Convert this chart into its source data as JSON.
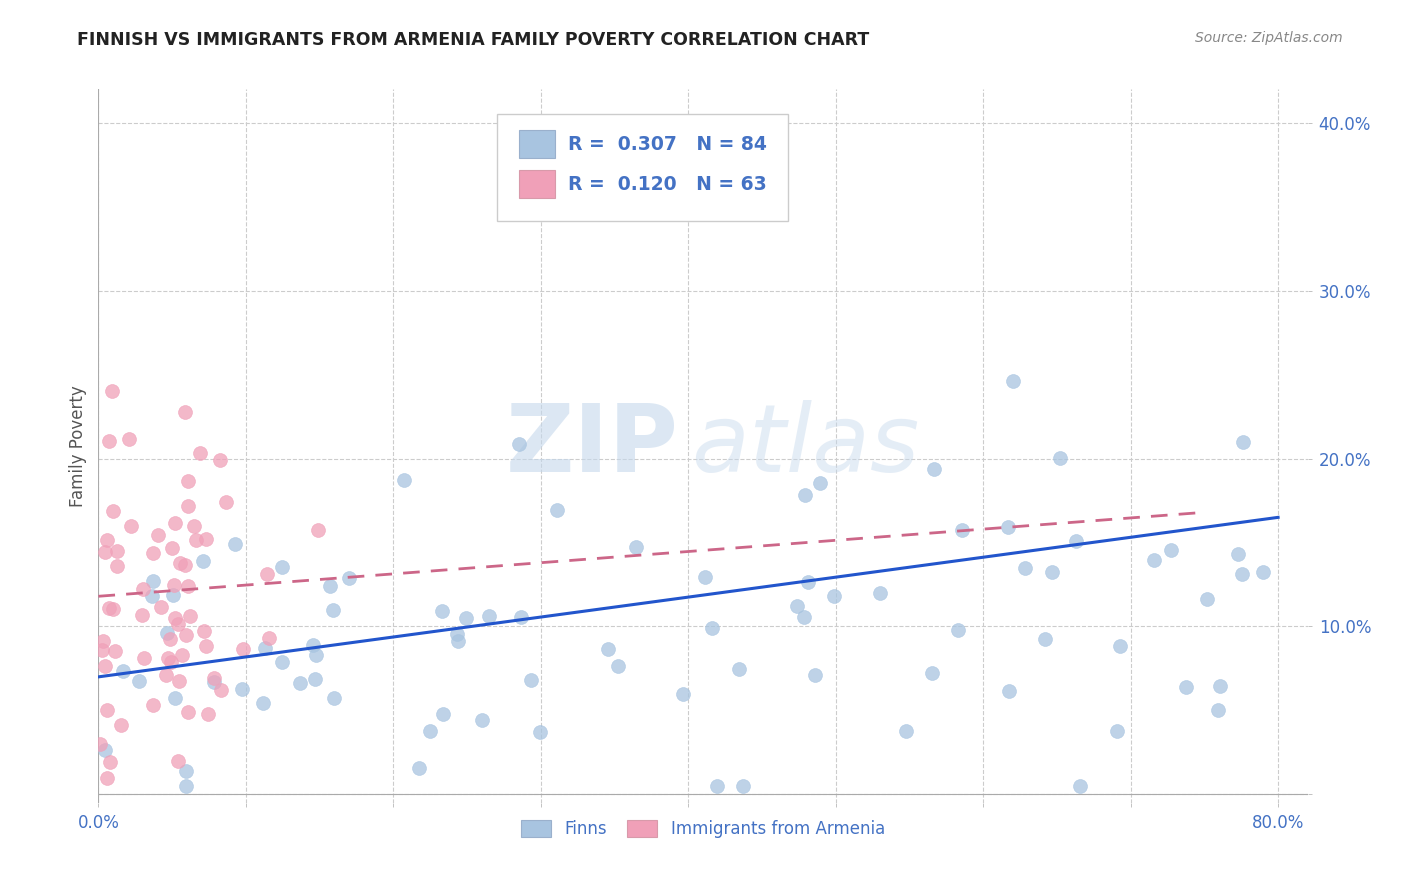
{
  "title": "FINNISH VS IMMIGRANTS FROM ARMENIA FAMILY POVERTY CORRELATION CHART",
  "source": "Source: ZipAtlas.com",
  "ylabel": "Family Poverty",
  "legend_label_1": "Finns",
  "legend_label_2": "Immigrants from Armenia",
  "R1": 0.307,
  "N1": 84,
  "R2": 0.12,
  "N2": 63,
  "color_finns": "#a8c4e0",
  "color_armenia": "#f0a0b8",
  "color_line_finns": "#2255cc",
  "color_line_armenia": "#cc6688",
  "xlim": [
    0.0,
    0.82
  ],
  "ylim": [
    -0.005,
    0.42
  ],
  "xticks": [
    0.0,
    0.1,
    0.2,
    0.3,
    0.4,
    0.5,
    0.6,
    0.7,
    0.8
  ],
  "yticks": [
    0.0,
    0.1,
    0.2,
    0.3,
    0.4
  ],
  "xtick_labels_show": [
    "0.0%",
    "80.0%"
  ],
  "xtick_positions_show": [
    0.0,
    0.8
  ],
  "ytick_labels": [
    "",
    "10.0%",
    "20.0%",
    "30.0%",
    "40.0%"
  ],
  "tick_color": "#4472c4",
  "watermark_zip": "ZIP",
  "watermark_atlas": "atlas",
  "background_color": "#ffffff",
  "grid_color": "#cccccc",
  "seed": 42,
  "finns_line_start": 0.07,
  "finns_line_end": 0.165,
  "armenia_line_start": 0.118,
  "armenia_line_end": 0.168,
  "armenia_line_x_end": 0.75
}
